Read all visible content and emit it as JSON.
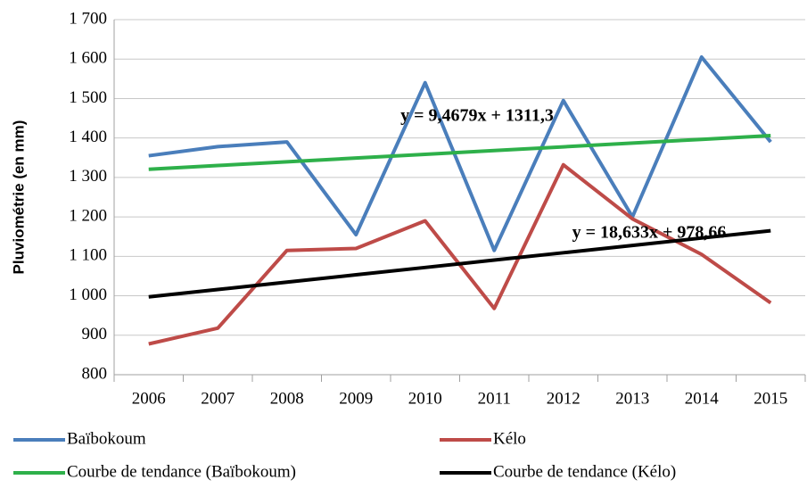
{
  "chart_data": {
    "type": "line",
    "y_label": "Pluviométrie (en mm)",
    "categories": [
      "2006",
      "2007",
      "2008",
      "2009",
      "2010",
      "2011",
      "2012",
      "2013",
      "2014",
      "2015"
    ],
    "series": [
      {
        "name": "Baïbokoum",
        "color": "#4a7ebb",
        "values": [
          1355,
          1378,
          1390,
          1155,
          1540,
          1115,
          1495,
          1200,
          1605,
          1390
        ]
      },
      {
        "name": "Kélo",
        "color": "#be4b48",
        "values": [
          878,
          918,
          1115,
          1120,
          1190,
          968,
          1332,
          1195,
          1105,
          982
        ]
      },
      {
        "name": "Courbe de tendance (Baïbokoum)",
        "color": "#2eb04a",
        "values": [
          1320.8,
          1330.2,
          1339.7,
          1349.2,
          1358.6,
          1368.1,
          1377.6,
          1387.0,
          1396.5,
          1406.0
        ]
      },
      {
        "name": "Courbe de tendance (Kélo)",
        "color": "#000000",
        "values": [
          997.3,
          1015.9,
          1034.6,
          1053.2,
          1071.8,
          1090.5,
          1109.1,
          1127.7,
          1146.4,
          1165.0
        ]
      }
    ],
    "annotations": [
      "y = 9,4679x + 1311,3",
      "y = 18,633x + 978,66"
    ],
    "ylim": [
      800,
      1700
    ],
    "yticks": [
      800,
      900,
      {
        "value": 1000,
        "label": "1 000"
      },
      {
        "value": 1100,
        "label": "1 100"
      },
      {
        "value": 1200,
        "label": "1 200"
      },
      {
        "value": 1300,
        "label": "1 300"
      },
      {
        "value": 1400,
        "label": "1 400"
      },
      {
        "value": 1500,
        "label": "1 500"
      },
      {
        "value": 1600,
        "label": "1 600"
      },
      {
        "value": 1700,
        "label": "1 700"
      }
    ],
    "grid": true,
    "legend": "bottom"
  }
}
